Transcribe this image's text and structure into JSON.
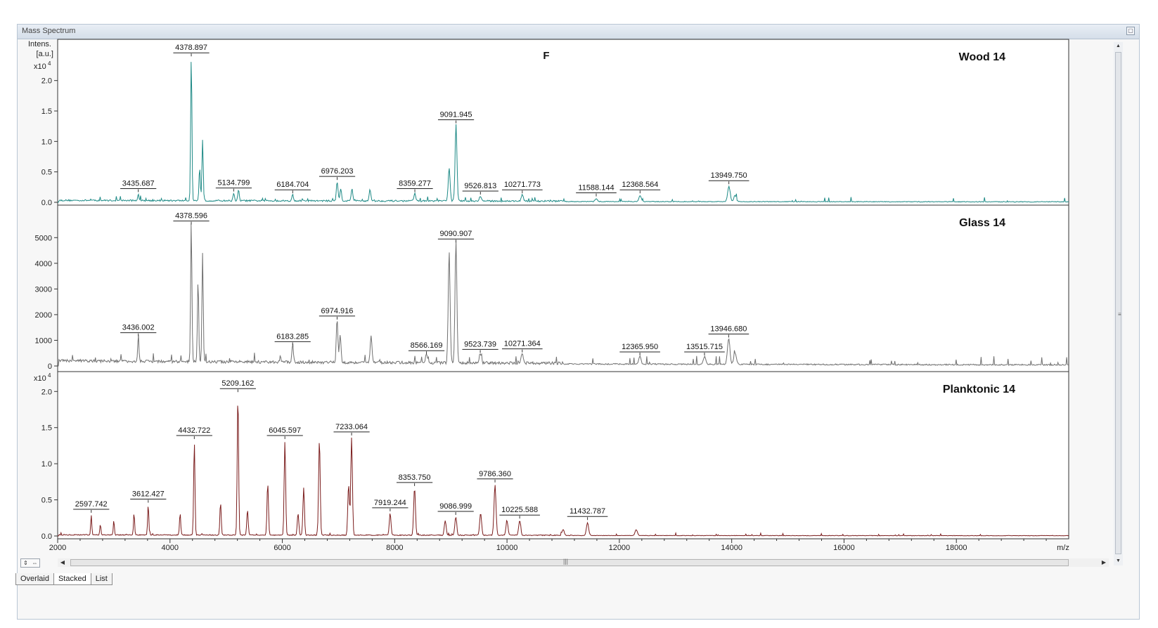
{
  "window": {
    "title": "Mass Spectrum"
  },
  "chart_data": {
    "type": "line",
    "title": "F",
    "xlabel": "m/z",
    "xlim": [
      2000,
      20000
    ],
    "x_ticks": [
      "2000",
      "4000",
      "6000",
      "8000",
      "10000",
      "12000",
      "14000",
      "16000",
      "18000"
    ],
    "panels": [
      {
        "name": "Wood 14",
        "color": "#1e8a86",
        "ylabel": "Intens. [a.u.]",
        "y_exponent": "x10",
        "y_exponent_power": "4",
        "ylim": [
          0,
          2.4
        ],
        "y_ticks": [
          0,
          0.5,
          1.0,
          1.5,
          2.0
        ],
        "y_tick_labels": [
          "0.0",
          "0.5",
          "1.0",
          "1.5",
          "2.0"
        ],
        "baseline": 0.02,
        "noise": 0.025,
        "peaks": [
          {
            "x": 3435.687,
            "y": 0.12,
            "label": "3435.687"
          },
          {
            "x": 4378.897,
            "y": 2.35,
            "label": "4378.897"
          },
          {
            "x": 4528,
            "y": 0.55
          },
          {
            "x": 4580,
            "y": 1.0
          },
          {
            "x": 5134.799,
            "y": 0.13,
            "label": "5134.799"
          },
          {
            "x": 5220,
            "y": 0.18
          },
          {
            "x": 6184.704,
            "y": 0.1,
            "label": "6184.704"
          },
          {
            "x": 6976.203,
            "y": 0.32,
            "label": "6976.203"
          },
          {
            "x": 7040,
            "y": 0.2
          },
          {
            "x": 7240,
            "y": 0.2
          },
          {
            "x": 7560,
            "y": 0.18
          },
          {
            "x": 8359.277,
            "y": 0.12,
            "label": "8359.277"
          },
          {
            "x": 8970,
            "y": 0.55
          },
          {
            "x": 9091.945,
            "y": 1.25,
            "label": "9091.945"
          },
          {
            "x": 9526.813,
            "y": 0.08,
            "label": "9526.813"
          },
          {
            "x": 10271.773,
            "y": 0.1,
            "label": "10271.773"
          },
          {
            "x": 11588.144,
            "y": 0.05,
            "label": "11588.144"
          },
          {
            "x": 12368.564,
            "y": 0.1,
            "label": "12368.564"
          },
          {
            "x": 13949.75,
            "y": 0.25,
            "label": "13949.750"
          },
          {
            "x": 14060,
            "y": 0.1
          }
        ]
      },
      {
        "name": "Glass 14",
        "color": "#707070",
        "ylim": [
          0,
          5500
        ],
        "y_ticks": [
          0,
          1000,
          2000,
          3000,
          4000,
          5000
        ],
        "y_tick_labels": [
          "0",
          "1000",
          "2000",
          "3000",
          "4000",
          "5000"
        ],
        "baseline": 150,
        "noise": 110,
        "peaks": [
          {
            "x": 3436.002,
            "y": 1050,
            "label": "3436.002"
          },
          {
            "x": 4378.596,
            "y": 5400,
            "label": "4378.596"
          },
          {
            "x": 4500,
            "y": 3200
          },
          {
            "x": 4580,
            "y": 4200
          },
          {
            "x": 6183.285,
            "y": 700,
            "label": "6183.285"
          },
          {
            "x": 6974.916,
            "y": 1700,
            "label": "6974.916"
          },
          {
            "x": 7030,
            "y": 1050
          },
          {
            "x": 7580,
            "y": 1100
          },
          {
            "x": 8566.169,
            "y": 350,
            "label": "8566.169"
          },
          {
            "x": 8970,
            "y": 4350
          },
          {
            "x": 9090.907,
            "y": 4700,
            "label": "9090.907"
          },
          {
            "x": 9523.739,
            "y": 400,
            "label": "9523.739"
          },
          {
            "x": 10271.364,
            "y": 420,
            "label": "10271.364"
          },
          {
            "x": 12365.95,
            "y": 300,
            "label": "12365.950"
          },
          {
            "x": 13515.715,
            "y": 300,
            "label": "13515.715"
          },
          {
            "x": 13946.68,
            "y": 1000,
            "label": "13946.680"
          },
          {
            "x": 14060,
            "y": 450
          }
        ]
      },
      {
        "name": "Planktonic 14",
        "color": "#7b1d1d",
        "y_exponent": "x10",
        "y_exponent_power": "4",
        "ylim": [
          0,
          2.1
        ],
        "y_ticks": [
          0,
          0.5,
          1.0,
          1.5,
          2.0
        ],
        "y_tick_labels": [
          "0.0",
          "0.5",
          "1.0",
          "1.5",
          "2.0"
        ],
        "baseline": 0.01,
        "noise": 0.012,
        "peaks": [
          {
            "x": 2597.742,
            "y": 0.28,
            "label": "2597.742"
          },
          {
            "x": 2760,
            "y": 0.15
          },
          {
            "x": 3000,
            "y": 0.2
          },
          {
            "x": 3360,
            "y": 0.3
          },
          {
            "x": 3612.427,
            "y": 0.42,
            "label": "3612.427"
          },
          {
            "x": 4180,
            "y": 0.3
          },
          {
            "x": 4432.722,
            "y": 1.3,
            "label": "4432.722"
          },
          {
            "x": 4900,
            "y": 0.45
          },
          {
            "x": 5209.162,
            "y": 1.95,
            "label": "5209.162"
          },
          {
            "x": 5380,
            "y": 0.35
          },
          {
            "x": 5740,
            "y": 0.72
          },
          {
            "x": 6045.597,
            "y": 1.3,
            "label": "6045.597"
          },
          {
            "x": 6280,
            "y": 0.3
          },
          {
            "x": 6380,
            "y": 0.65
          },
          {
            "x": 6660,
            "y": 1.33
          },
          {
            "x": 7180,
            "y": 0.7
          },
          {
            "x": 7233.064,
            "y": 1.35,
            "label": "7233.064"
          },
          {
            "x": 7919.244,
            "y": 0.3,
            "label": "7919.244"
          },
          {
            "x": 8353.75,
            "y": 0.65,
            "label": "8353.750"
          },
          {
            "x": 8900,
            "y": 0.2
          },
          {
            "x": 9086.999,
            "y": 0.25,
            "label": "9086.999"
          },
          {
            "x": 9530,
            "y": 0.3
          },
          {
            "x": 9786.36,
            "y": 0.7,
            "label": "9786.360"
          },
          {
            "x": 10000,
            "y": 0.2
          },
          {
            "x": 10225.588,
            "y": 0.2,
            "label": "10225.588"
          },
          {
            "x": 11000,
            "y": 0.08
          },
          {
            "x": 11432.787,
            "y": 0.18,
            "label": "11432.787"
          },
          {
            "x": 12300,
            "y": 0.08
          }
        ]
      }
    ]
  },
  "tabs": [
    {
      "label": "Overlaid",
      "active": false
    },
    {
      "label": "Stacked",
      "active": true
    },
    {
      "label": "List",
      "active": false
    }
  ]
}
